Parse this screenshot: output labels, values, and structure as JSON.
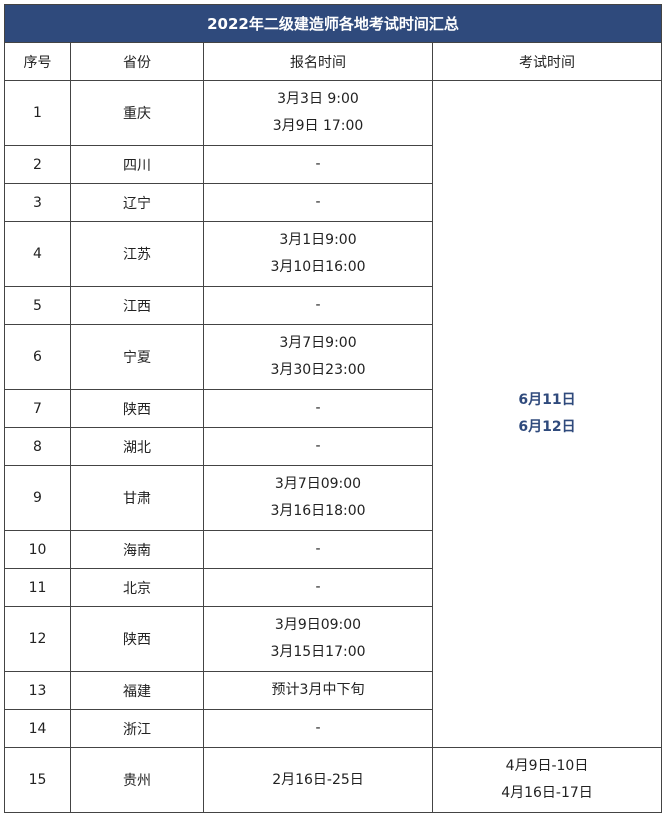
{
  "title": "2022年二级建造师各地考试时间汇总",
  "headers": [
    "序号",
    "省份",
    "报名时间",
    "考试时间"
  ],
  "rows": [
    {
      "no": "1",
      "province": "重庆",
      "reg": [
        "3月3日 9:00",
        "3月9日 17:00"
      ]
    },
    {
      "no": "2",
      "province": "四川",
      "reg": [
        "-"
      ]
    },
    {
      "no": "3",
      "province": "辽宁",
      "reg": [
        "-"
      ]
    },
    {
      "no": "4",
      "province": "江苏",
      "reg": [
        "3月1日9:00",
        "3月10日16:00"
      ]
    },
    {
      "no": "5",
      "province": "江西",
      "reg": [
        "-"
      ]
    },
    {
      "no": "6",
      "province": "宁夏",
      "reg": [
        "3月7日9:00",
        "3月30日23:00"
      ]
    },
    {
      "no": "7",
      "province": "陕西",
      "reg": [
        "-"
      ]
    },
    {
      "no": "8",
      "province": "湖北",
      "reg": [
        "-"
      ]
    },
    {
      "no": "9",
      "province": "甘肃",
      "reg": [
        "3月7日09:00",
        "3月16日18:00"
      ]
    },
    {
      "no": "10",
      "province": "海南",
      "reg": [
        "-"
      ]
    },
    {
      "no": "11",
      "province": "北京",
      "reg": [
        "-"
      ]
    },
    {
      "no": "12",
      "province": "陕西",
      "reg": [
        "3月9日09:00",
        "3月15日17:00"
      ]
    },
    {
      "no": "13",
      "province": "福建",
      "reg": [
        "预计3月中下旬"
      ]
    },
    {
      "no": "14",
      "province": "浙江",
      "reg": [
        "-"
      ]
    },
    {
      "no": "15",
      "province": "贵州",
      "reg": [
        "2月16日-25日"
      ],
      "exam": [
        "4月9日-10日",
        "4月16日-17日"
      ]
    }
  ],
  "shared_exam": [
    "6月11日",
    "6月12日"
  ],
  "colors": {
    "title_bg": "#2f4a7c",
    "exam_text": "#2f4a7c"
  }
}
